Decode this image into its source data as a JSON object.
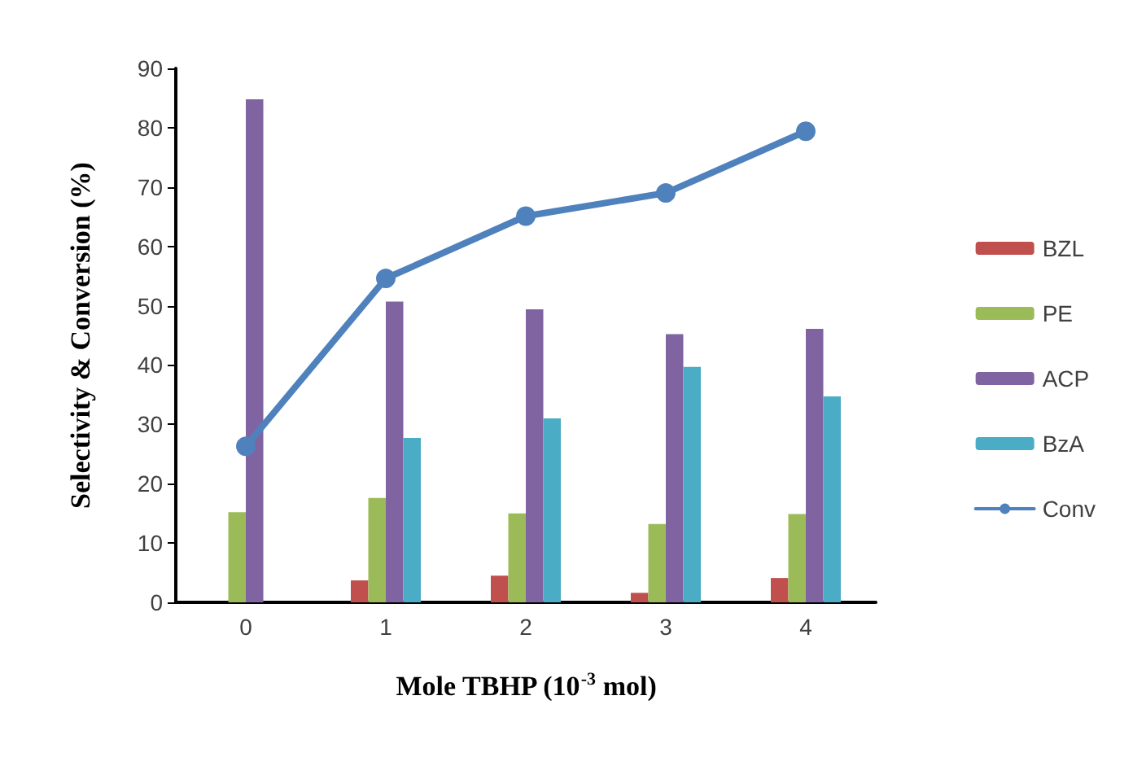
{
  "chart_data": {
    "type": "bar",
    "categories": [
      "0",
      "1",
      "2",
      "3",
      "4"
    ],
    "xlabel": "Mole TBHP (10$^{-3}$ mol)",
    "ylabel": "Selectivity & Conversion (%)",
    "ylim": [
      0,
      90
    ],
    "yticks": [
      0,
      10,
      20,
      30,
      40,
      50,
      60,
      70,
      80,
      90
    ],
    "grid": false,
    "legend": "right",
    "marker": "circle",
    "series": [
      {
        "name": "BZL",
        "color": "#c0504d",
        "values": [
          null,
          3.7,
          4.5,
          1.6,
          4.1
        ]
      },
      {
        "name": "PE",
        "color": "#9bbb59",
        "values": [
          15.2,
          17.6,
          15.0,
          13.2,
          14.9
        ]
      },
      {
        "name": "ACP",
        "color": "#8064a2",
        "values": [
          84.8,
          50.7,
          49.4,
          45.2,
          46.1
        ]
      },
      {
        "name": "BzA",
        "color": "#4bacc6",
        "values": [
          null,
          27.7,
          31.0,
          39.7,
          34.7
        ]
      },
      {
        "name": "Conv",
        "type": "line",
        "color": "#4f81bd",
        "values": [
          26.3,
          54.6,
          65.1,
          69.0,
          79.4
        ]
      }
    ]
  }
}
